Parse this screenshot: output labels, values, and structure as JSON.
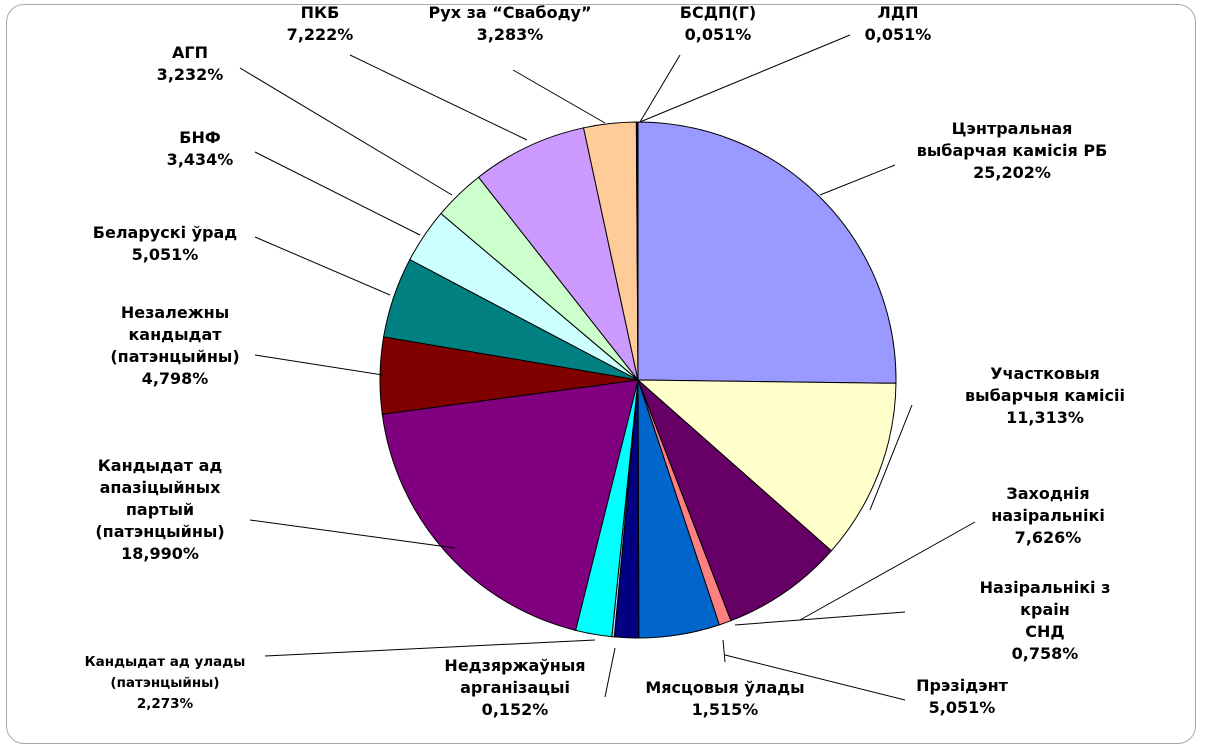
{
  "chart_data": {
    "type": "pie",
    "categories": [
      "Цэнтральная\nвыбарчая камісія РБ",
      "Участковыя\nвыбарчыя камісіі",
      "Заходнія\nназіральнікі",
      "Назіральнікі з краін\nСНД",
      "Прэзідэнт",
      "Мясцовыя ўлады",
      "Недзяржаўныя\nарганізацыі",
      "Кандыдат ад улады\n(патэнцыйны)",
      "Кандыдат ад\nапазіцыйных\nпартый\n(патэнцыйны)",
      "Незалежны\nкандыдат\n(патэнцыйны)",
      "Беларускі ўрад",
      "БНФ",
      "АГП",
      "ПКБ",
      "Рух за “Свабоду”",
      "БСДП(Г)",
      "ЛДП"
    ],
    "values": [
      25.202,
      11.313,
      7.626,
      0.758,
      5.051,
      1.515,
      0.152,
      2.273,
      18.99,
      4.798,
      5.051,
      3.434,
      3.232,
      7.222,
      3.283,
      0.051,
      0.051
    ],
    "value_labels": [
      "25,202%",
      "11,313%",
      "7,626%",
      "0,758%",
      "5,051%",
      "1,515%",
      "0,152%",
      "2,273%",
      "18,990%",
      "4,798%",
      "5,051%",
      "3,434%",
      "3,232%",
      "7,222%",
      "3,283%",
      "0,051%",
      "0,051%"
    ],
    "colors": [
      "#9999ff",
      "#ffffcc",
      "#660066",
      "#ff8080",
      "#0066cc",
      "#000080",
      "#ccccff",
      "#00ffff",
      "#800080",
      "#800000",
      "#008080",
      "#ccffff",
      "#ccffcc",
      "#cc99ff",
      "#ffcc99",
      "#ffff99",
      "#993366"
    ]
  }
}
